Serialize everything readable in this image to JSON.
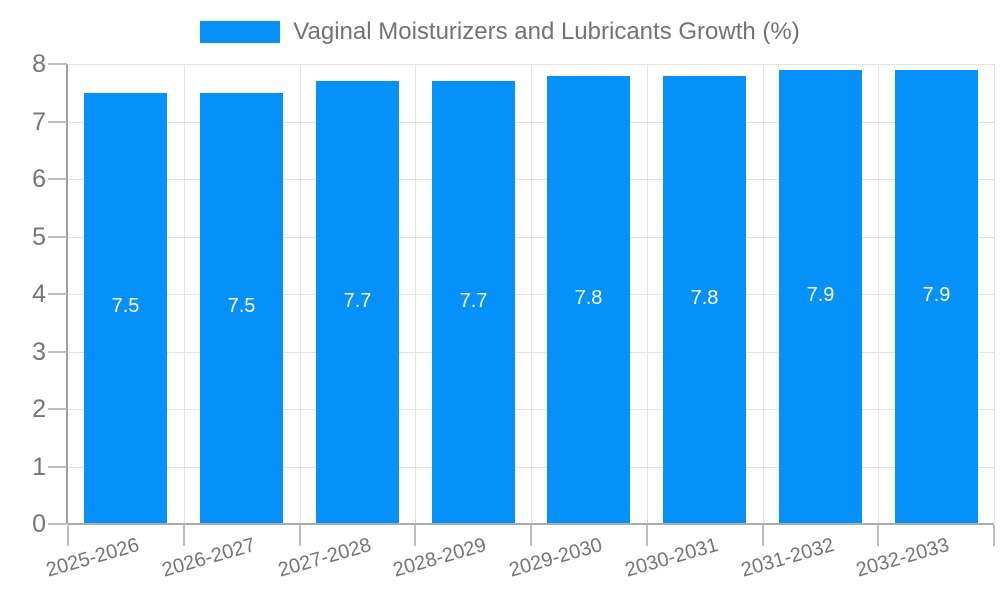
{
  "legend": {
    "label": "Vaginal Moisturizers and Lubricants Growth (%)"
  },
  "chart_data": {
    "type": "bar",
    "title": "Vaginal Moisturizers and Lubricants Growth (%)",
    "series_name": "Vaginal Moisturizers and Lubricants Growth (%)",
    "categories": [
      "2025-2026",
      "2026-2027",
      "2027-2028",
      "2028-2029",
      "2029-2030",
      "2030-2031",
      "2031-2032",
      "2032-2033"
    ],
    "values": [
      7.5,
      7.5,
      7.7,
      7.7,
      7.8,
      7.8,
      7.9,
      7.9
    ],
    "bar_labels": [
      "7.5",
      "7.5",
      "7.7",
      "7.7",
      "7.8",
      "7.8",
      "7.9",
      "7.9"
    ],
    "xlabel": "",
    "ylabel": "",
    "ylim": [
      0,
      8
    ],
    "yticks": [
      0,
      1,
      2,
      3,
      4,
      5,
      6,
      7,
      8
    ],
    "ytick_labels": [
      "0",
      "1",
      "2",
      "3",
      "4",
      "5",
      "6",
      "7",
      "8"
    ],
    "grid": true,
    "legend_position": "top",
    "colors": {
      "bar": "#0690FA",
      "grid": "#e3e3e3",
      "axis": "#a6a6a6",
      "tick": "#bdbdbd",
      "tick_label": "#757575",
      "title": "#737373",
      "bar_label": "#ffffff",
      "background": "#ffffff"
    }
  }
}
